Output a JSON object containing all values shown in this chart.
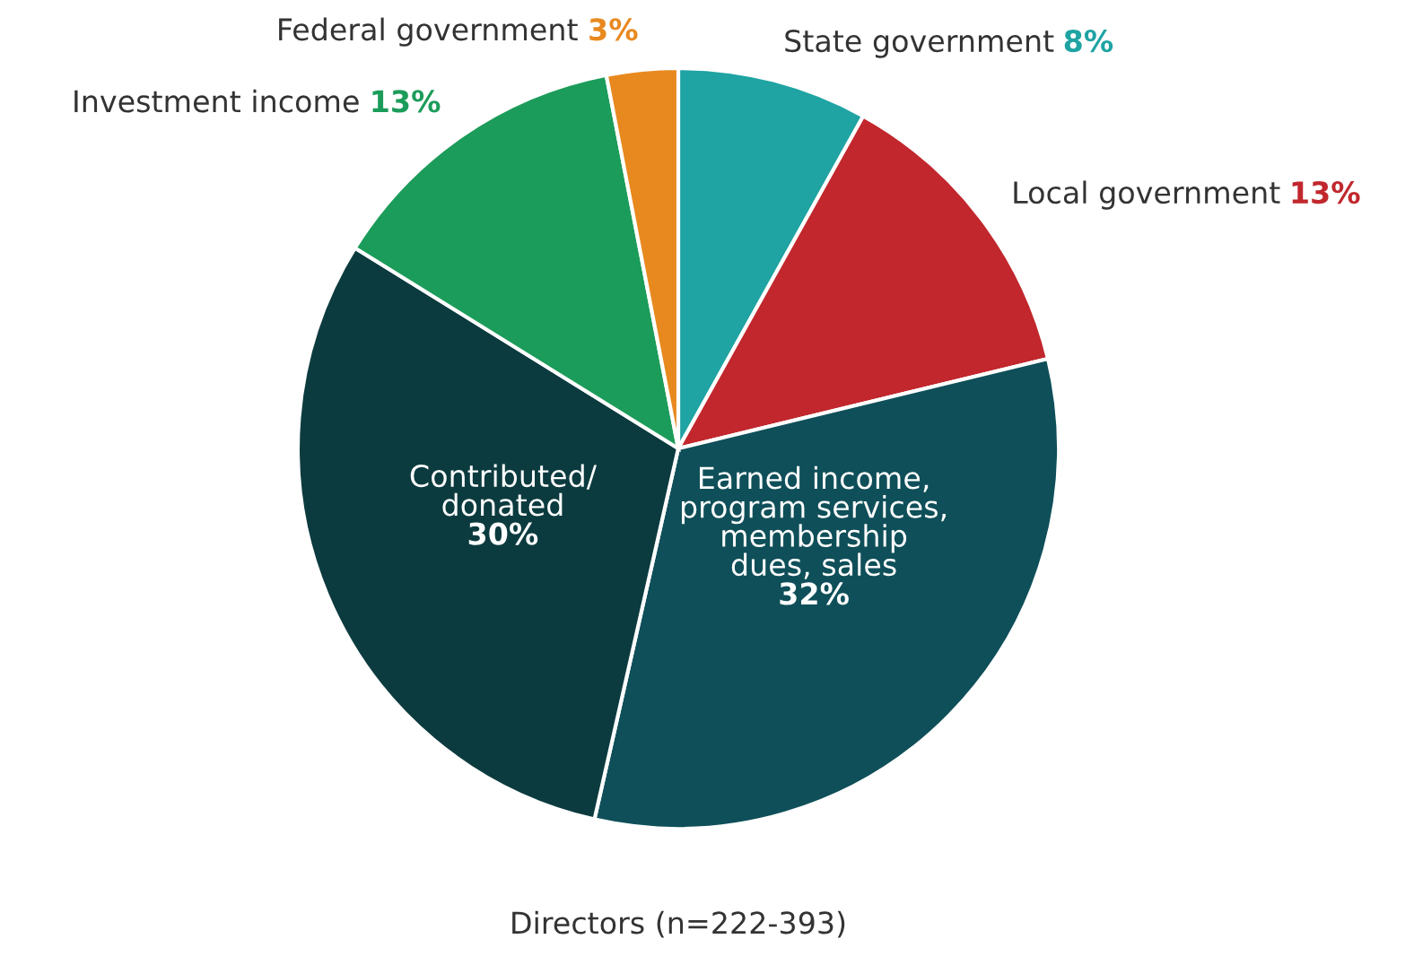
{
  "chart_data": {
    "type": "pie",
    "categories": [
      "State government",
      "Local government",
      "Earned income,\nprogram services,\nmembership\ndues, sales",
      "Contributed/\ndonated",
      "Investment income",
      "Federal government"
    ],
    "values": [
      8,
      13,
      32,
      30,
      13,
      3
    ],
    "colors": [
      "#1fa3a3",
      "#c1272d",
      "#0f4f59",
      "#0c3b3f",
      "#1c9c5a",
      "#e8891f"
    ],
    "value_labels": [
      "8%",
      "13%",
      "32%",
      "30%",
      "13%",
      "3%"
    ],
    "annotations": [
      "Directors (n=222-393)"
    ]
  }
}
